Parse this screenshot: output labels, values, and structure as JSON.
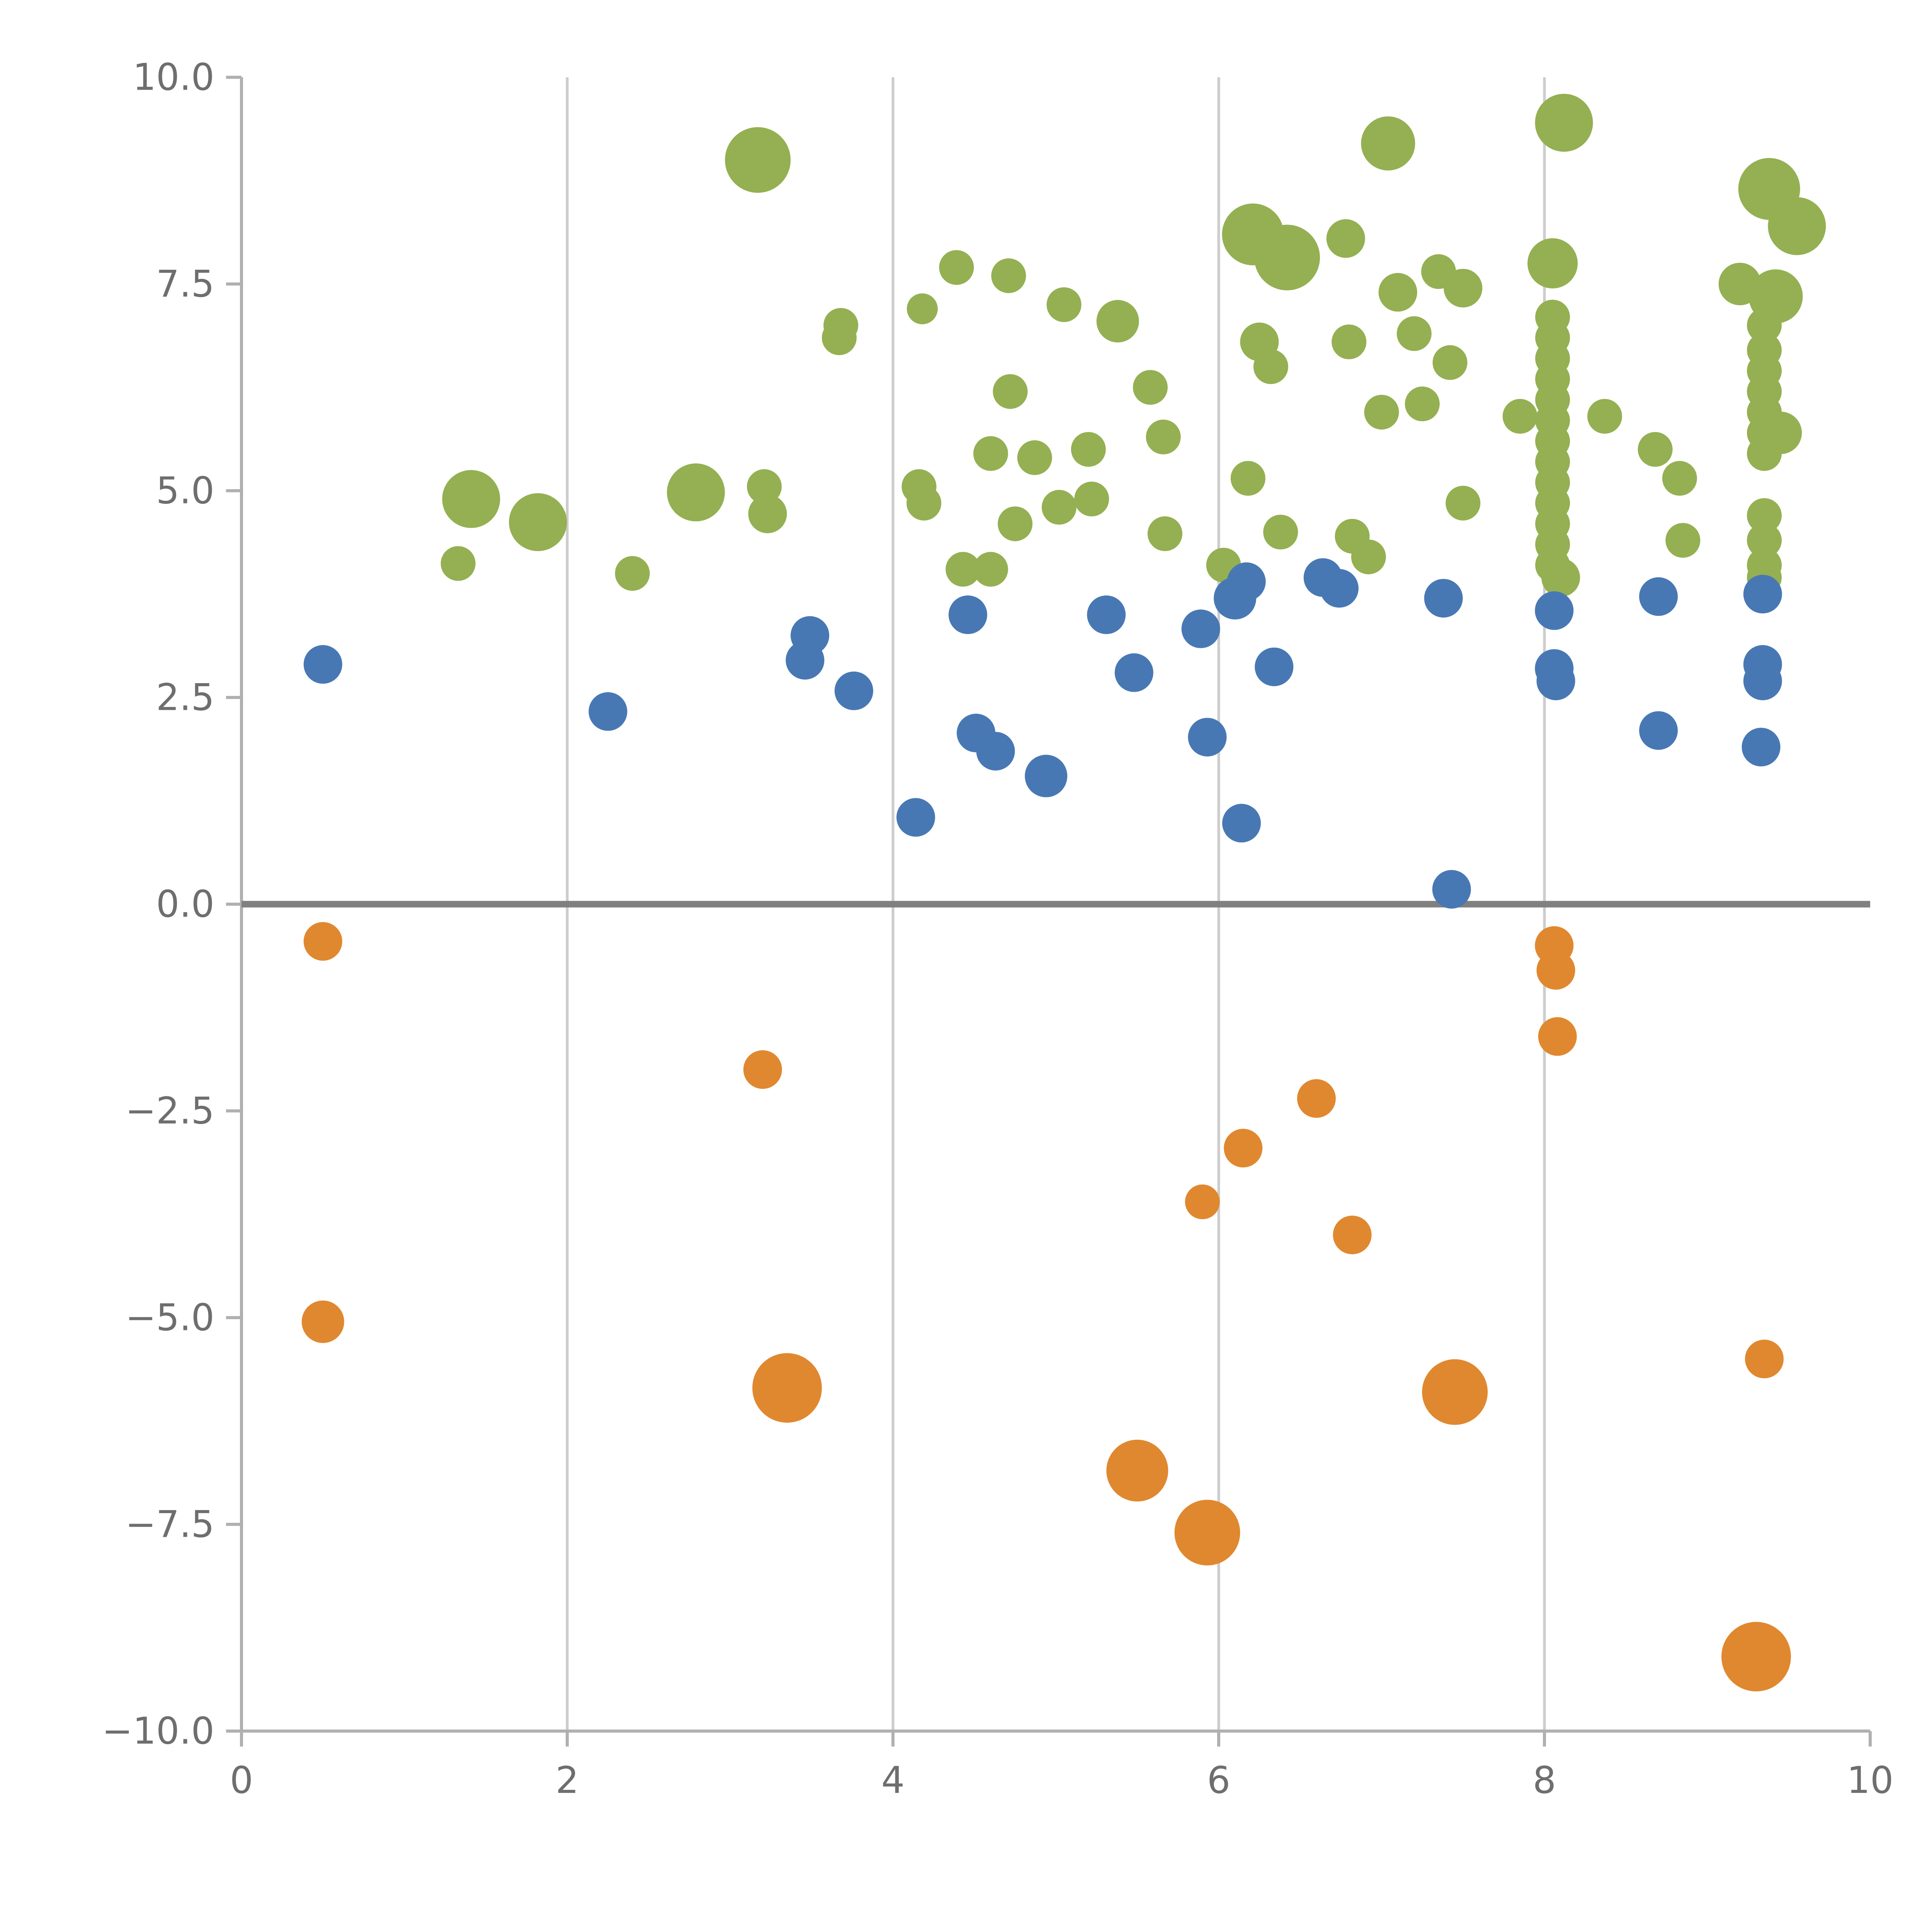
{
  "figure": {
    "background": "#ffffff",
    "axis_color": "#b0b0b0",
    "tick_label_color": "#6e6e6e"
  },
  "chart_data": {
    "type": "scatter",
    "title": "",
    "xlabel": "",
    "ylabel": "",
    "xlim": [
      0,
      10
    ],
    "ylim": [
      -10,
      10
    ],
    "grid": "vertical-only",
    "legend_position": "none",
    "x_ticks": {
      "values": [
        0,
        2,
        4,
        6,
        8,
        10
      ],
      "labels": [
        "0",
        "2",
        "4",
        "6",
        "8",
        "10"
      ]
    },
    "y_ticks": {
      "values": [
        10,
        7.5,
        5,
        2.5,
        0,
        -2.5,
        -5,
        -7.5,
        -10
      ],
      "labels": [
        "10.0",
        "7.5",
        "5.0",
        "2.5",
        "0.0",
        "−2.5",
        "−5.0",
        "−7.5",
        "−10.0"
      ]
    },
    "gridlines": {
      "vertical_x": [
        2,
        4,
        6,
        8
      ],
      "color": "#cccccc"
    },
    "zero_line": {
      "y": 0,
      "color": "#808080"
    },
    "series": [
      {
        "name": "green",
        "color": "#94b052",
        "points": [
          [
            3.17,
            9.0,
            17
          ],
          [
            7.04,
            9.2,
            14
          ],
          [
            8.12,
            9.45,
            15
          ],
          [
            9.38,
            8.65,
            16
          ],
          [
            9.55,
            8.2,
            15
          ],
          [
            6.21,
            8.1,
            16
          ],
          [
            6.42,
            7.82,
            17
          ],
          [
            6.78,
            8.05,
            10
          ],
          [
            4.39,
            7.7,
            9
          ],
          [
            4.71,
            7.6,
            9
          ],
          [
            5.05,
            7.25,
            9
          ],
          [
            5.38,
            7.05,
            11
          ],
          [
            4.18,
            7.2,
            8
          ],
          [
            3.68,
            7.0,
            9
          ],
          [
            3.67,
            6.85,
            9
          ],
          [
            7.1,
            7.4,
            10
          ],
          [
            7.35,
            7.65,
            9
          ],
          [
            8.05,
            7.75,
            13
          ],
          [
            7.5,
            7.45,
            10
          ],
          [
            9.2,
            7.5,
            11
          ],
          [
            9.42,
            7.35,
            14
          ],
          [
            6.25,
            6.8,
            10
          ],
          [
            6.32,
            6.5,
            9
          ],
          [
            6.8,
            6.8,
            9
          ],
          [
            7.2,
            6.9,
            9
          ],
          [
            7.42,
            6.55,
            9
          ],
          [
            5.58,
            6.25,
            9
          ],
          [
            4.72,
            6.2,
            9
          ],
          [
            7.0,
            5.95,
            9
          ],
          [
            7.25,
            6.05,
            9
          ],
          [
            7.85,
            5.9,
            9
          ],
          [
            8.37,
            5.9,
            9
          ],
          [
            4.6,
            5.45,
            9
          ],
          [
            4.87,
            5.4,
            9
          ],
          [
            5.2,
            5.5,
            9
          ],
          [
            5.66,
            5.65,
            9
          ],
          [
            8.68,
            5.5,
            9
          ],
          [
            4.16,
            5.05,
            9
          ],
          [
            4.19,
            4.85,
            9
          ],
          [
            1.41,
            4.9,
            15
          ],
          [
            1.82,
            4.62,
            15
          ],
          [
            2.79,
            4.98,
            15
          ],
          [
            3.21,
            5.05,
            9
          ],
          [
            3.23,
            4.72,
            10
          ],
          [
            5.02,
            4.8,
            9
          ],
          [
            5.22,
            4.9,
            9
          ],
          [
            4.75,
            4.6,
            9
          ],
          [
            5.67,
            4.48,
            9
          ],
          [
            6.18,
            5.15,
            9
          ],
          [
            6.38,
            4.5,
            9
          ],
          [
            6.82,
            4.45,
            9
          ],
          [
            6.92,
            4.2,
            9
          ],
          [
            7.5,
            4.85,
            9
          ],
          [
            8.83,
            5.15,
            9
          ],
          [
            8.85,
            4.4,
            9
          ],
          [
            1.33,
            4.12,
            9
          ],
          [
            2.4,
            4.0,
            9
          ],
          [
            4.43,
            4.05,
            9
          ],
          [
            4.6,
            4.05,
            9
          ],
          [
            6.03,
            4.1,
            9
          ],
          [
            8.1,
            3.95,
            10
          ],
          [
            9.35,
            3.95,
            9
          ],
          [
            8.05,
            7.1,
            9
          ],
          [
            8.05,
            6.85,
            9
          ],
          [
            8.05,
            6.6,
            9
          ],
          [
            8.05,
            6.35,
            9
          ],
          [
            8.05,
            6.1,
            9
          ],
          [
            8.05,
            5.85,
            9
          ],
          [
            8.05,
            5.6,
            9
          ],
          [
            8.05,
            5.35,
            9
          ],
          [
            8.05,
            5.1,
            9
          ],
          [
            8.05,
            4.85,
            9
          ],
          [
            8.05,
            4.6,
            9
          ],
          [
            8.05,
            4.35,
            9
          ],
          [
            8.05,
            4.1,
            9
          ],
          [
            9.35,
            7.0,
            9
          ],
          [
            9.35,
            6.7,
            9
          ],
          [
            9.35,
            6.45,
            9
          ],
          [
            9.35,
            6.2,
            9
          ],
          [
            9.35,
            5.95,
            9
          ],
          [
            9.35,
            5.7,
            9
          ],
          [
            9.35,
            5.45,
            9
          ],
          [
            9.35,
            4.7,
            9
          ],
          [
            9.35,
            4.4,
            9
          ],
          [
            9.35,
            4.1,
            9
          ],
          [
            9.45,
            5.7,
            11
          ]
        ]
      },
      {
        "name": "blue",
        "color": "#4878b4",
        "points": [
          [
            0.5,
            2.9,
            10
          ],
          [
            2.25,
            2.33,
            10
          ],
          [
            3.49,
            3.25,
            10
          ],
          [
            3.46,
            2.95,
            10
          ],
          [
            3.76,
            2.58,
            10
          ],
          [
            4.14,
            1.05,
            10
          ],
          [
            4.46,
            3.5,
            10
          ],
          [
            4.51,
            2.07,
            10
          ],
          [
            4.63,
            1.85,
            10
          ],
          [
            4.94,
            1.55,
            11
          ],
          [
            5.31,
            3.5,
            10
          ],
          [
            5.48,
            2.8,
            10
          ],
          [
            5.89,
            3.33,
            10
          ],
          [
            5.93,
            2.02,
            10
          ],
          [
            6.1,
            3.7,
            11
          ],
          [
            6.14,
            0.98,
            10
          ],
          [
            6.17,
            3.9,
            10
          ],
          [
            6.34,
            2.87,
            10
          ],
          [
            6.64,
            3.95,
            10
          ],
          [
            6.74,
            3.82,
            10
          ],
          [
            7.38,
            3.7,
            10
          ],
          [
            7.43,
            0.18,
            10
          ],
          [
            8.06,
            3.55,
            10
          ],
          [
            8.06,
            2.85,
            10
          ],
          [
            8.07,
            2.7,
            10
          ],
          [
            8.7,
            3.72,
            10
          ],
          [
            8.7,
            2.1,
            10
          ],
          [
            9.34,
            3.75,
            10
          ],
          [
            9.34,
            2.9,
            10
          ],
          [
            9.34,
            2.7,
            10
          ],
          [
            9.33,
            1.9,
            10
          ]
        ]
      },
      {
        "name": "orange",
        "color": "#e0882f",
        "points": [
          [
            0.5,
            -0.45,
            10
          ],
          [
            0.5,
            -5.05,
            11
          ],
          [
            3.2,
            -2.0,
            10
          ],
          [
            3.35,
            -5.85,
            18
          ],
          [
            5.5,
            -6.85,
            16
          ],
          [
            5.93,
            -7.6,
            17
          ],
          [
            5.9,
            -3.6,
            9
          ],
          [
            6.15,
            -2.95,
            10
          ],
          [
            6.6,
            -2.35,
            10
          ],
          [
            6.82,
            -4.0,
            10
          ],
          [
            7.45,
            -5.9,
            17
          ],
          [
            8.06,
            -0.5,
            10
          ],
          [
            8.07,
            -0.8,
            10
          ],
          [
            8.08,
            -1.6,
            10
          ],
          [
            9.3,
            -9.1,
            18
          ],
          [
            9.35,
            -5.5,
            10
          ]
        ]
      }
    ]
  }
}
